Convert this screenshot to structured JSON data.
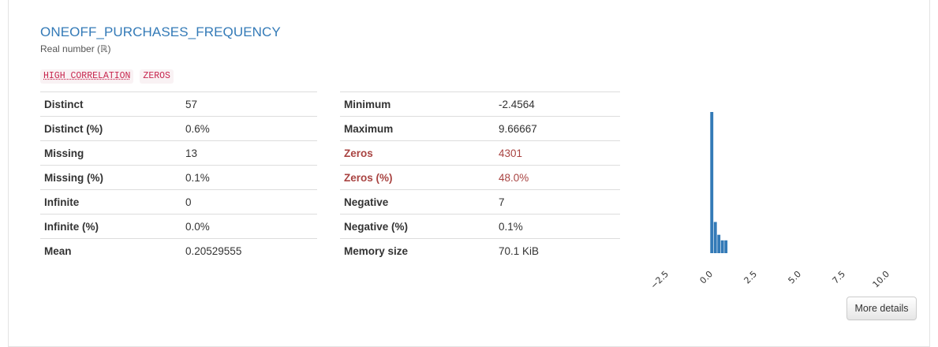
{
  "variable": {
    "name": "ONEOFF_PURCHASES_FREQUENCY",
    "type_label": "Real number (ℝ)"
  },
  "badges": [
    "HIGH CORRELATION",
    "ZEROS"
  ],
  "stats_left": [
    {
      "label": "Distinct",
      "value": "57"
    },
    {
      "label": "Distinct (%)",
      "value": "0.6%"
    },
    {
      "label": "Missing",
      "value": "13"
    },
    {
      "label": "Missing (%)",
      "value": "0.1%"
    },
    {
      "label": "Infinite",
      "value": "0"
    },
    {
      "label": "Infinite (%)",
      "value": "0.0%"
    },
    {
      "label": "Mean",
      "value": "0.20529555"
    }
  ],
  "stats_right": [
    {
      "label": "Minimum",
      "value": "-2.4564"
    },
    {
      "label": "Maximum",
      "value": "9.66667"
    },
    {
      "label": "Zeros",
      "value": "4301",
      "alert": true
    },
    {
      "label": "Zeros (%)",
      "value": "48.0%",
      "alert": true
    },
    {
      "label": "Negative",
      "value": "7"
    },
    {
      "label": "Negative (%)",
      "value": "0.1%"
    },
    {
      "label": "Memory size",
      "value": "70.1 KiB"
    }
  ],
  "colors": {
    "title": "#337ab7",
    "bar": "#337ab7",
    "alert": "#a94442",
    "badge_text": "#c7254e",
    "badge_bg": "#f9f2f4"
  },
  "chart_data": {
    "type": "bar",
    "title": "",
    "xlabel": "",
    "ylabel": "",
    "x_ticks": [
      "−2.5",
      "0.0",
      "2.5",
      "5.0",
      "7.5",
      "10.0"
    ],
    "x_tick_values": [
      -2.5,
      0.0,
      2.5,
      5.0,
      7.5,
      10.0
    ],
    "xlim": [
      -3.0,
      10.5
    ],
    "ylim": [
      0,
      4301
    ],
    "bin_width": 0.2,
    "bins": [
      {
        "x": 0.0,
        "count": 4301
      },
      {
        "x": 0.2,
        "count": 950
      },
      {
        "x": 0.4,
        "count": 560
      },
      {
        "x": 0.6,
        "count": 390
      },
      {
        "x": 0.8,
        "count": 390
      }
    ],
    "grid": false
  },
  "actions": {
    "more_details": "More details"
  }
}
